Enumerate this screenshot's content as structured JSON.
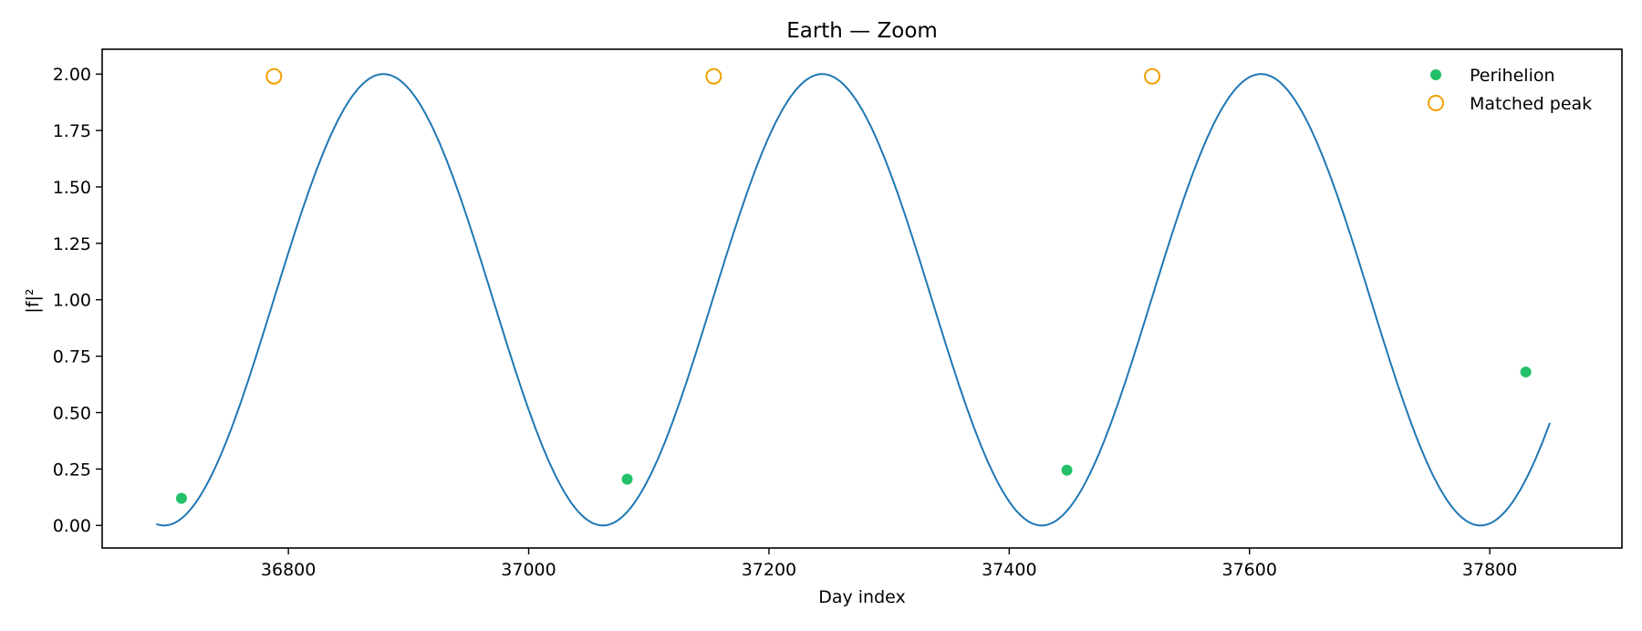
{
  "chart_data": {
    "type": "line",
    "title": "Earth — Zoom",
    "xlabel": "Day index",
    "ylabel": "|f|²",
    "xlim": [
      36645,
      37910
    ],
    "ylim": [
      -0.1,
      2.11
    ],
    "x_ticks": [
      36800,
      37000,
      37200,
      37400,
      37600,
      37800
    ],
    "y_ticks": [
      0.0,
      0.25,
      0.5,
      0.75,
      1.0,
      1.25,
      1.5,
      1.75,
      2.0
    ],
    "y_tick_labels": [
      "0.00",
      "0.25",
      "0.50",
      "0.75",
      "1.00",
      "1.25",
      "1.50",
      "1.75",
      "2.00"
    ],
    "grid": false,
    "legend_position": "top-right",
    "series": [
      {
        "kind": "line",
        "color": "#1f77b4",
        "x_start": 36690,
        "x_end": 37850,
        "period_days": 365.25,
        "first_minimum_day": 36696.5,
        "amplitude": 1.0,
        "offset": 1.0
      },
      {
        "name": "Perihelion",
        "kind": "scatter",
        "marker": "filled-circle",
        "color": "#22c068",
        "points": [
          {
            "x": 36711,
            "y": 0.12
          },
          {
            "x": 37082,
            "y": 0.205
          },
          {
            "x": 37448,
            "y": 0.245
          },
          {
            "x": 37830,
            "y": 0.68
          }
        ]
      },
      {
        "name": "Matched peak",
        "kind": "scatter",
        "marker": "hollow-circle",
        "color": "#f0a000",
        "points": [
          {
            "x": 36788,
            "y": 1.99
          },
          {
            "x": 37154,
            "y": 1.99
          },
          {
            "x": 37519,
            "y": 1.99
          }
        ]
      }
    ]
  }
}
